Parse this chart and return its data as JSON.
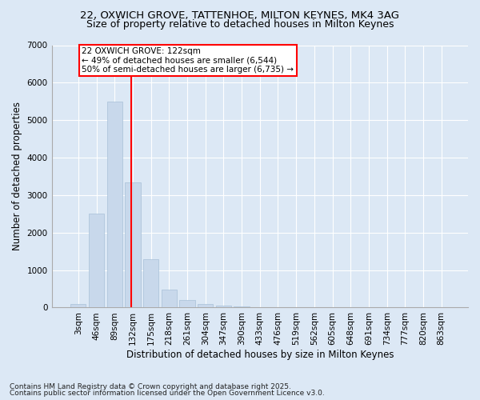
{
  "title_line1": "22, OXWICH GROVE, TATTENHOE, MILTON KEYNES, MK4 3AG",
  "title_line2": "Size of property relative to detached houses in Milton Keynes",
  "xlabel": "Distribution of detached houses by size in Milton Keynes",
  "ylabel": "Number of detached properties",
  "categories": [
    "3sqm",
    "46sqm",
    "89sqm",
    "132sqm",
    "175sqm",
    "218sqm",
    "261sqm",
    "304sqm",
    "347sqm",
    "390sqm",
    "433sqm",
    "476sqm",
    "519sqm",
    "562sqm",
    "605sqm",
    "648sqm",
    "691sqm",
    "734sqm",
    "777sqm",
    "820sqm",
    "863sqm"
  ],
  "values": [
    100,
    2500,
    5500,
    3350,
    1300,
    480,
    210,
    90,
    50,
    30,
    0,
    0,
    0,
    0,
    0,
    0,
    0,
    0,
    0,
    0,
    0
  ],
  "bar_color": "#c8d8eb",
  "bar_edgecolor": "#a8c0d8",
  "vline_x_index": 3,
  "vline_color": "red",
  "annotation_title": "22 OXWICH GROVE: 122sqm",
  "annotation_line1": "← 49% of detached houses are smaller (6,544)",
  "annotation_line2": "50% of semi-detached houses are larger (6,735) →",
  "annotation_box_color": "white",
  "annotation_box_edgecolor": "red",
  "ylim": [
    0,
    7000
  ],
  "yticks": [
    0,
    1000,
    2000,
    3000,
    4000,
    5000,
    6000,
    7000
  ],
  "footnote_line1": "Contains HM Land Registry data © Crown copyright and database right 2025.",
  "footnote_line2": "Contains public sector information licensed under the Open Government Licence v3.0.",
  "bg_color": "#dce8f5",
  "plot_bg_color": "#dce8f5",
  "title_fontsize": 9.5,
  "subtitle_fontsize": 9,
  "axis_label_fontsize": 8.5,
  "tick_fontsize": 7.5,
  "annotation_fontsize": 7.5,
  "footnote_fontsize": 6.5
}
